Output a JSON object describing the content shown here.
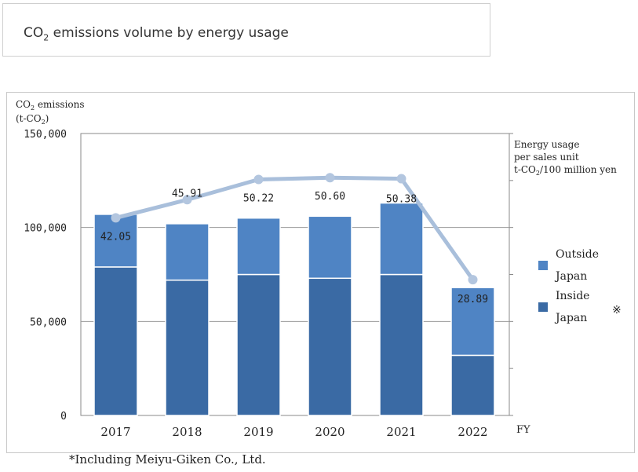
{
  "header": {
    "title_prefix": "CO",
    "title_sub": "2",
    "title_suffix": " emissions volume by energy usage"
  },
  "footnote": "*Including Meiyu-Giken Co., Ltd.",
  "chart_data": {
    "type": "bar",
    "stacked": true,
    "categories": [
      "2017",
      "2018",
      "2019",
      "2020",
      "2021",
      "2022"
    ],
    "xlabel": "FY",
    "ylabel_line1": "CO2 emissions",
    "ylabel_line2": "(t-CO2)",
    "ylim": [
      0,
      150000
    ],
    "yticks": [
      0,
      50000,
      100000,
      150000
    ],
    "ytick_labels": [
      "0",
      "50,000",
      "100,000",
      "150,000"
    ],
    "series": [
      {
        "name": "Inside Japan",
        "color": "#3a6aa4",
        "values": [
          79000,
          72000,
          75000,
          73000,
          75000,
          32000
        ]
      },
      {
        "name": "Outside Japan",
        "color": "#4f84c4",
        "values": [
          28000,
          30000,
          30000,
          33000,
          38000,
          36000
        ]
      }
    ],
    "line_series": {
      "name": "Energy usage per sales unit",
      "color": "#a9bfdb",
      "unit_line1": "Energy usage",
      "unit_line2": "per sales unit",
      "unit_line3": "t-CO2/100 million yen",
      "values": [
        42.05,
        45.91,
        50.22,
        50.6,
        50.38,
        28.89
      ],
      "labels": [
        "42.05",
        "45.91",
        "50.22",
        "50.60",
        "50.38",
        "28.89"
      ]
    },
    "legend": {
      "position": "right",
      "items": [
        {
          "line1": "Outside",
          "line2": "Japan",
          "color": "#4f84c4"
        },
        {
          "line1": "Inside",
          "line2": "Japan",
          "color": "#3a6aa4"
        }
      ],
      "note_mark": "※"
    }
  }
}
